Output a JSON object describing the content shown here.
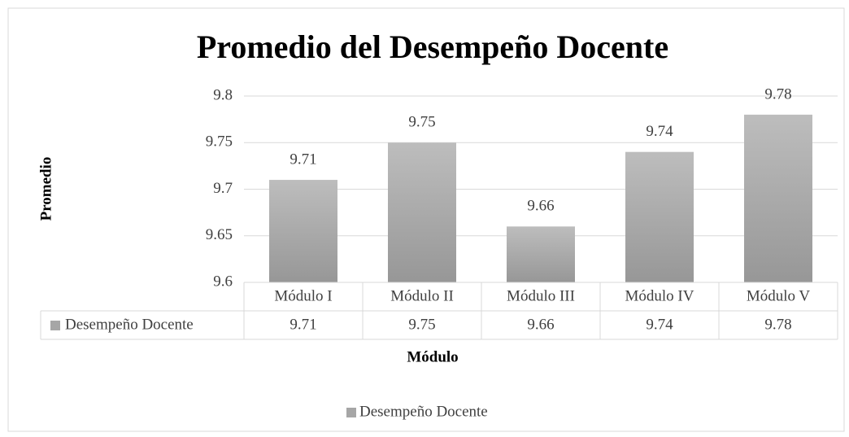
{
  "chart_data": {
    "type": "bar",
    "title": "Promedio del Desempeño Docente",
    "x_label": "Módulo",
    "y_label": "Promedio",
    "categories": [
      "Módulo I",
      "Módulo II",
      "Módulo III",
      "Módulo IV",
      "Módulo V"
    ],
    "series": [
      {
        "name": "Desempeño Docente",
        "color": "#a6a6a6",
        "values": [
          9.71,
          9.75,
          9.66,
          9.74,
          9.78
        ]
      }
    ],
    "ylim": [
      9.6,
      9.8
    ],
    "yticks": [
      9.6,
      9.65,
      9.7,
      9.75,
      9.8
    ],
    "grid": true,
    "legend": "bottom",
    "data_table": true
  }
}
